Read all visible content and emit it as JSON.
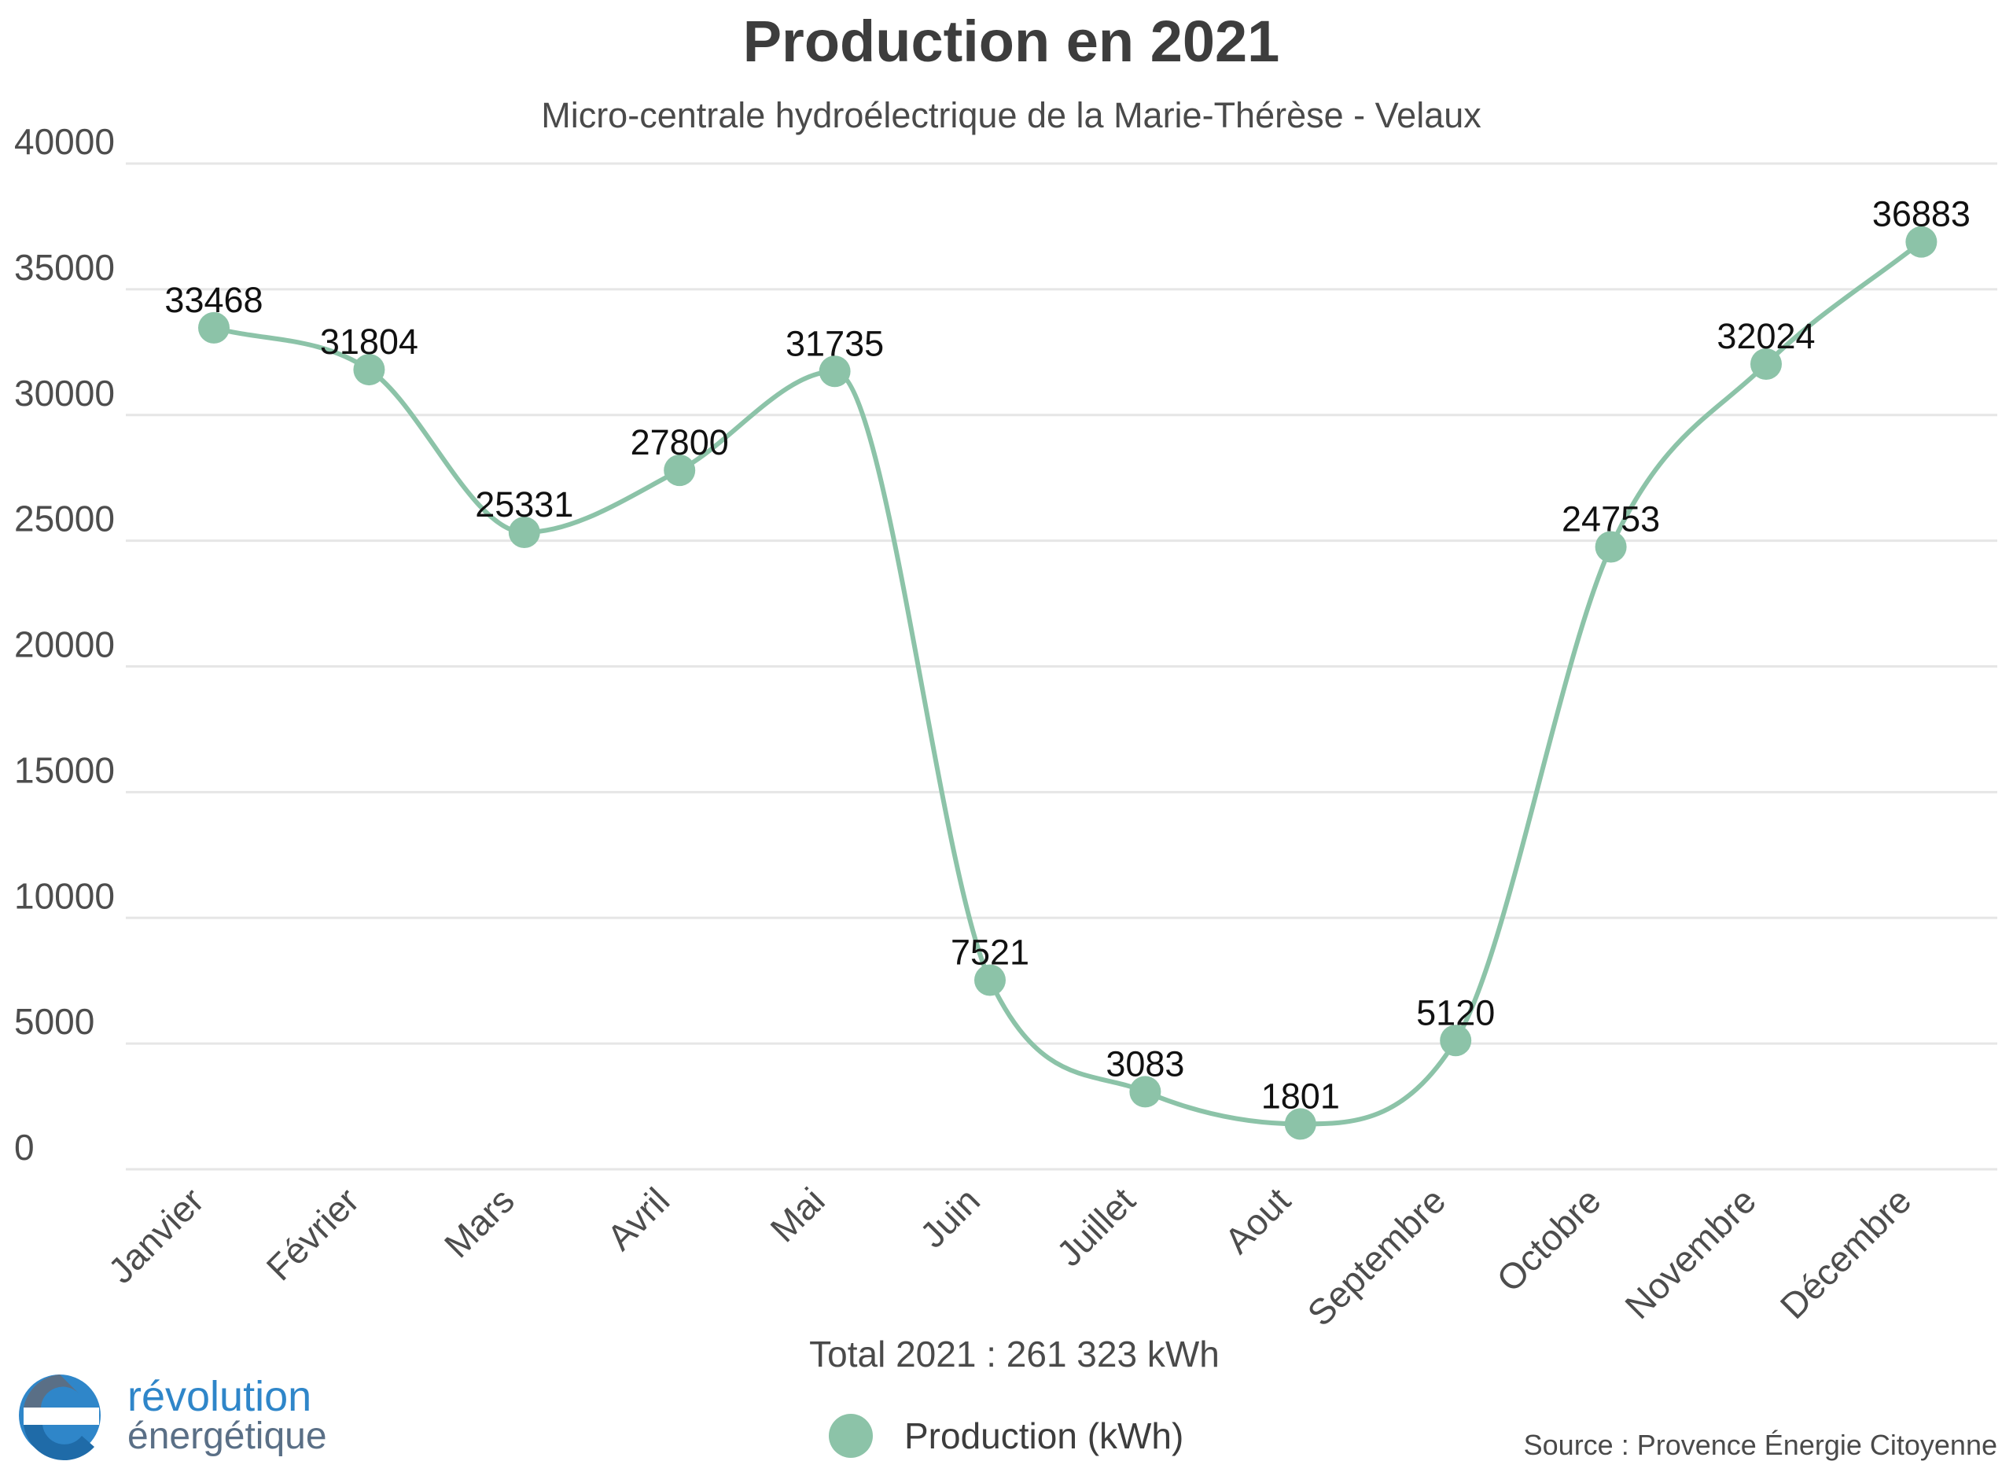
{
  "chart_data": {
    "type": "line",
    "title": "Production en 2021",
    "subtitle": "Micro-centrale hydroélectrique de la Marie-Thérèse - Velaux",
    "categories": [
      "Janvier",
      "Février",
      "Mars",
      "Avril",
      "Mai",
      "Juin",
      "Juillet",
      "Aout",
      "Septembre",
      "Octobre",
      "Novembre",
      "Décembre"
    ],
    "series": [
      {
        "name": "Production (kWh)",
        "values": [
          33468,
          31804,
          25331,
          27800,
          31735,
          7521,
          3083,
          1801,
          5120,
          24753,
          32024,
          36883
        ]
      }
    ],
    "ylim": [
      0,
      40000
    ],
    "yticks": [
      0,
      5000,
      10000,
      15000,
      20000,
      25000,
      30000,
      35000,
      40000
    ],
    "grid": true,
    "legend_position": "bottom-center",
    "smooth": true,
    "data_labels": true,
    "colors": {
      "series": "#8cc3a8",
      "grid": "#e6e6e6"
    }
  },
  "footer": {
    "total": "Total 2021 : 261 323 kWh",
    "source": "Source : Provence Énergie Citoyenne"
  },
  "logo": {
    "line1": "révolution",
    "line2": "énergétique",
    "colors": {
      "blue": "#2f86c9",
      "slate": "#5a6f86"
    }
  }
}
